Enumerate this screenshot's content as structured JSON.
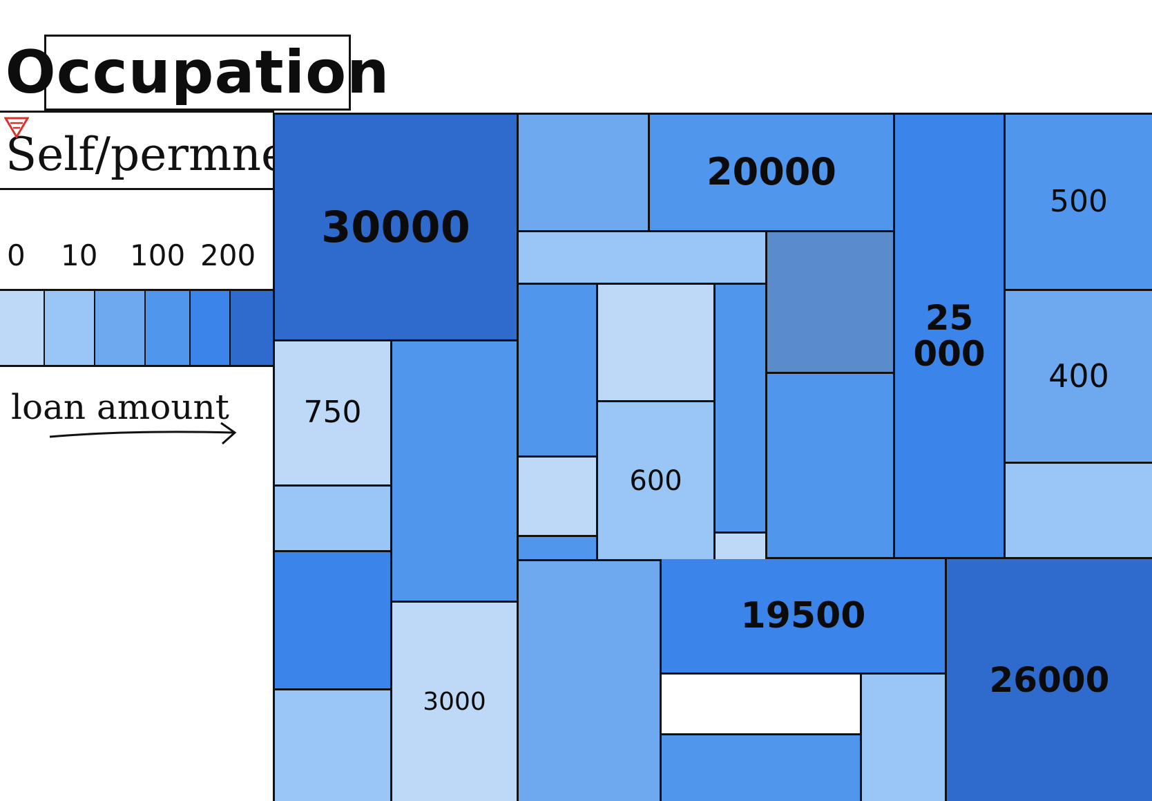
{
  "title": "Occupation",
  "filter": {
    "value": "Self/permne",
    "icon": "filter-icon",
    "icon_color": "#d8332a"
  },
  "legend": {
    "ticks": [
      "0",
      "10",
      "100",
      "200"
    ],
    "colors": [
      "#bdd9f7",
      "#9ac6f5",
      "#6ea9ef",
      "#4f96ec",
      "#3a84ea",
      "#2f6bcc"
    ],
    "label": "loan amount"
  },
  "treemap": {
    "tiles": [
      {
        "label": "30000",
        "color": "#2f6bcc",
        "bold": true
      },
      {
        "label": "",
        "color": "#6ea9ef"
      },
      {
        "label": "20000",
        "color": "#4f96ec",
        "bold": true
      },
      {
        "label": "25\n000",
        "color": "#3a84ea",
        "bold": true
      },
      {
        "label": "500",
        "color": "#4f96ec"
      },
      {
        "label": "",
        "color": "#9ac6f5"
      },
      {
        "label": "",
        "color": "#5a8ccc"
      },
      {
        "label": "",
        "color": "#4f96ec"
      },
      {
        "label": "",
        "color": "#bdd9f7"
      },
      {
        "label": "",
        "color": "#4f96ec"
      },
      {
        "label": "400",
        "color": "#6ea9ef"
      },
      {
        "label": "750",
        "color": "#bdd9f7"
      },
      {
        "label": "",
        "color": "#4f96ec"
      },
      {
        "label": "600",
        "color": "#9ac6f5"
      },
      {
        "label": "",
        "color": "#4f96ec"
      },
      {
        "label": "",
        "color": "#bdd9f7"
      },
      {
        "label": "",
        "color": "#9ac6f5"
      },
      {
        "label": "",
        "color": "#bdd9f7"
      },
      {
        "label": "",
        "color": "#9ac6f5"
      },
      {
        "label": "",
        "color": "#3a84ea"
      },
      {
        "label": "",
        "color": "#4f96ec"
      },
      {
        "label": "",
        "color": "#6ea9ef"
      },
      {
        "label": "19500",
        "color": "#3a84ea",
        "bold": true
      },
      {
        "label": "26000",
        "color": "#2f6bcc",
        "bold": true
      },
      {
        "label": "3000",
        "color": "#bdd9f7"
      },
      {
        "label": "",
        "color": "#ffffff"
      },
      {
        "label": "",
        "color": "#9ac6f5"
      },
      {
        "label": "",
        "color": "#9ac6f5"
      },
      {
        "label": "",
        "color": "#4f96ec"
      }
    ]
  }
}
